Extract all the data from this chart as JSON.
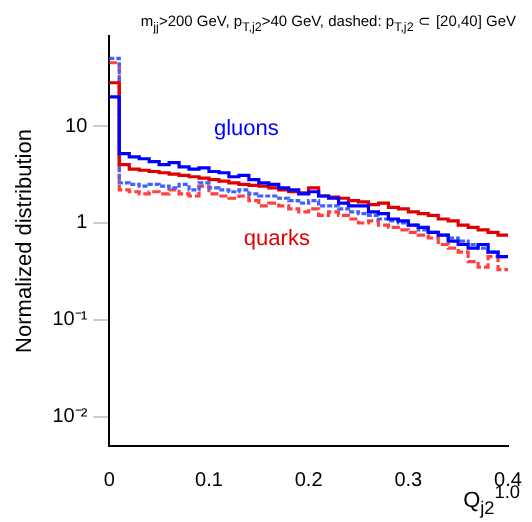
{
  "chart_data": {
    "type": "histogram",
    "title": "m$_{jj}$>200 GeV, p$_{T,j2}$>40 GeV, dashed: p$_{T,j2}$ ⊂ [20,40] GeV",
    "xlabel": "Q$_{j2}$$^{1.0}$",
    "ylabel": "Normalized distribution",
    "log": "y",
    "bins": [
      0,
      0.01,
      0.02,
      0.03,
      0.04,
      0.05,
      0.06,
      0.07,
      0.08,
      0.09,
      0.1,
      0.11,
      0.12,
      0.13,
      0.14,
      0.15,
      0.16,
      0.17,
      0.18,
      0.19,
      0.2,
      0.21,
      0.22,
      0.23,
      0.24,
      0.25,
      0.26,
      0.27,
      0.28,
      0.29,
      0.3,
      0.31,
      0.32,
      0.33,
      0.34,
      0.35,
      0.36,
      0.37,
      0.38,
      0.39,
      0.4
    ],
    "series": [
      {
        "name": "gluons",
        "color": "#0000ff",
        "line_style": "solid",
        "values": [
          20,
          5.2,
          4.8,
          4.6,
          4.3,
          4.0,
          4.2,
          3.8,
          3.6,
          3.7,
          3.4,
          3.3,
          3.0,
          3.1,
          2.8,
          2.6,
          2.5,
          2.3,
          2.2,
          2.0,
          2.1,
          1.9,
          1.8,
          1.6,
          1.5,
          1.5,
          1.3,
          1.25,
          1.1,
          1.05,
          0.95,
          0.9,
          0.8,
          0.75,
          0.65,
          0.6,
          0.55,
          0.6,
          0.5,
          0.45
        ]
      },
      {
        "name": "quarks",
        "color": "#e00000",
        "line_style": "solid",
        "values": [
          28,
          4.0,
          3.6,
          3.5,
          3.4,
          3.3,
          3.2,
          3.1,
          3.0,
          2.9,
          2.8,
          2.7,
          2.6,
          2.5,
          2.45,
          2.4,
          2.3,
          2.2,
          2.1,
          2.05,
          2.3,
          1.9,
          1.85,
          1.8,
          1.7,
          1.65,
          1.55,
          1.6,
          1.45,
          1.4,
          1.3,
          1.25,
          1.2,
          1.1,
          1.05,
          0.95,
          0.9,
          0.85,
          0.8,
          0.75
        ]
      },
      {
        "color": "#4060ff",
        "line_style": "dotted",
        "values": [
          50,
          2.6,
          2.5,
          2.4,
          2.5,
          2.4,
          2.3,
          2.5,
          2.2,
          2.6,
          2.3,
          2.2,
          2.1,
          2.2,
          2.0,
          1.9,
          1.9,
          1.8,
          1.7,
          1.6,
          1.7,
          1.5,
          1.5,
          1.4,
          1.3,
          1.25,
          1.2,
          1.1,
          1.05,
          1.0,
          0.95,
          0.85,
          0.8,
          0.75,
          0.7,
          0.65,
          0.6,
          0.55,
          0.5,
          0.45
        ]
      },
      {
        "color": "#ff4040",
        "line_style": "dashed",
        "values": [
          45,
          2.2,
          2.1,
          2.0,
          2.1,
          2.0,
          2.2,
          2.0,
          1.9,
          2.4,
          2.0,
          1.9,
          1.8,
          1.9,
          1.7,
          1.5,
          1.6,
          1.5,
          1.4,
          1.3,
          1.4,
          1.2,
          1.3,
          1.2,
          1.1,
          1.0,
          1.05,
          0.95,
          0.9,
          0.85,
          0.8,
          0.75,
          0.7,
          0.6,
          0.55,
          0.5,
          0.4,
          0.35,
          0.45,
          0.33
        ]
      }
    ],
    "xlim": [
      0,
      0.4
    ],
    "xticks": [
      0,
      0.1,
      0.2,
      0.3,
      0.4
    ],
    "ylim": [
      0.005,
      85
    ],
    "yticks": [
      {
        "value": 0.01,
        "label": "10⁻²"
      },
      {
        "value": 0.1,
        "label": "10⁻¹"
      },
      1,
      10
    ]
  }
}
